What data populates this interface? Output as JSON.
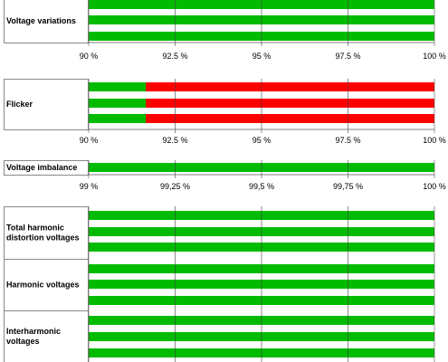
{
  "colors": {
    "ok": "#00bb00",
    "fail": "#ff0000",
    "grid": "#000000",
    "frame": "#888888"
  },
  "chart_data": [
    {
      "type": "bar",
      "orientation": "horizontal",
      "stacked": true,
      "label": "Voltage variations",
      "xlim": [
        90,
        100
      ],
      "ticks": [
        "90 %",
        "92.5 %",
        "95 %",
        "97.5 %",
        "100 %"
      ],
      "grid": true,
      "bars": [
        {
          "ok": 100,
          "fail": 0
        },
        {
          "ok": 100,
          "fail": 0
        },
        {
          "ok": 100,
          "fail": 0
        }
      ]
    },
    {
      "type": "bar",
      "orientation": "horizontal",
      "stacked": true,
      "label": "Flicker",
      "xlim": [
        90,
        100
      ],
      "ticks": [
        "90 %",
        "92.5 %",
        "95 %",
        "97.5 %",
        "100 %"
      ],
      "grid": true,
      "bars": [
        {
          "ok": 91.65,
          "fail": 8.35
        },
        {
          "ok": 91.65,
          "fail": 8.35
        },
        {
          "ok": 91.65,
          "fail": 8.35
        }
      ]
    },
    {
      "type": "bar",
      "orientation": "horizontal",
      "stacked": true,
      "label": "Voltage imbalance",
      "xlim": [
        99,
        100
      ],
      "ticks": [
        "99 %",
        "99,25 %",
        "99,5 %",
        "99,75 %",
        "100 %"
      ],
      "grid": true,
      "bars": [
        {
          "ok": 100,
          "fail": 0
        }
      ]
    },
    {
      "type": "bar",
      "orientation": "horizontal",
      "stacked": true,
      "label": "Total harmonic distortion voltages",
      "label_lines": [
        "Total harmonic",
        "distortion voltages"
      ],
      "xlim": [
        99,
        100
      ],
      "ticks": [],
      "grid": true,
      "bars": [
        {
          "ok": 100,
          "fail": 0
        },
        {
          "ok": 100,
          "fail": 0
        },
        {
          "ok": 100,
          "fail": 0
        }
      ]
    },
    {
      "type": "bar",
      "orientation": "horizontal",
      "stacked": true,
      "label": "Harmonic voltages",
      "xlim": [
        99,
        100
      ],
      "ticks": [],
      "grid": true,
      "bars": [
        {
          "ok": 100,
          "fail": 0
        },
        {
          "ok": 100,
          "fail": 0
        },
        {
          "ok": 100,
          "fail": 0
        }
      ]
    },
    {
      "type": "bar",
      "orientation": "horizontal",
      "stacked": true,
      "label": "Interharmonic voltages",
      "label_lines": [
        "Interharmonic",
        "voltages"
      ],
      "xlim": [
        99,
        100
      ],
      "ticks": [],
      "grid": true,
      "bars": [
        {
          "ok": 100,
          "fail": 0
        },
        {
          "ok": 100,
          "fail": 0
        },
        {
          "ok": 100,
          "fail": 0
        }
      ]
    }
  ]
}
